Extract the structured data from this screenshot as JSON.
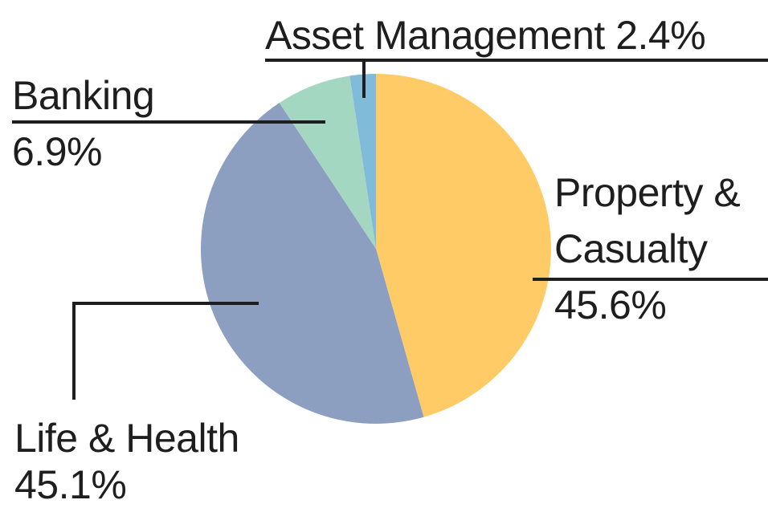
{
  "chart_data": {
    "type": "pie",
    "categories": [
      "Property & Casualty",
      "Life & Health",
      "Banking",
      "Asset Management"
    ],
    "values": [
      45.6,
      45.1,
      6.9,
      2.4
    ],
    "value_labels": [
      "45.6%",
      "45.1%",
      "6.9%",
      "2.4%"
    ],
    "colors": [
      "#fecb67",
      "#8c9fc1",
      "#a4d7c1",
      "#80bcd9"
    ]
  }
}
